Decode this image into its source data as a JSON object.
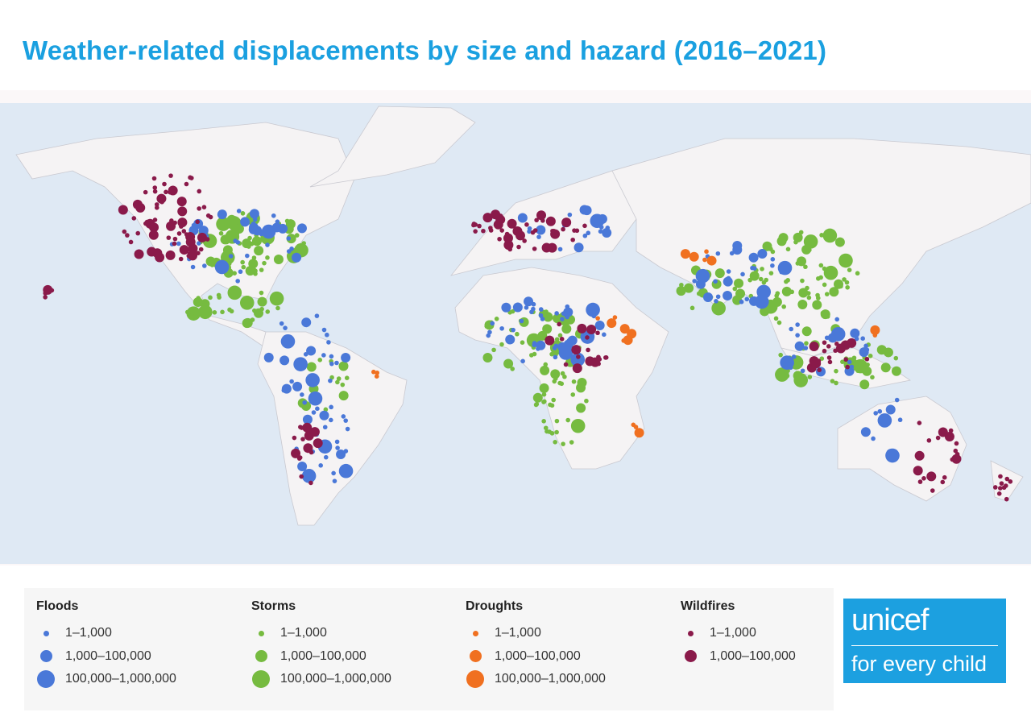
{
  "title": "Weather-related displacements by size and hazard (2016–2021)",
  "legend": [
    {
      "name": "Floods",
      "color": "#4a78d8",
      "sizes": [
        "1–1,000",
        "1,000–100,000",
        "100,000–1,000,000"
      ]
    },
    {
      "name": "Storms",
      "color": "#76bb40",
      "sizes": [
        "1–1,000",
        "1,000–100,000",
        "100,000–1,000,000"
      ]
    },
    {
      "name": "Droughts",
      "color": "#f07020",
      "sizes": [
        "1–1,000",
        "1,000–100,000",
        "100,000–1,000,000"
      ]
    },
    {
      "name": "Wildfires",
      "color": "#8a1a4a",
      "sizes": [
        "1–1,000",
        "1,000–100,000"
      ]
    }
  ],
  "logo": {
    "name": "unicef",
    "tagline": "for every child"
  }
}
